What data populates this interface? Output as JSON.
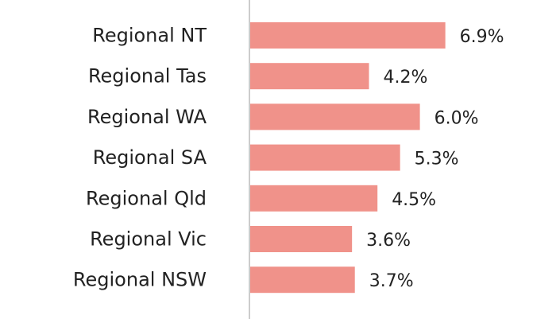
{
  "chart_data": {
    "type": "bar",
    "orientation": "horizontal",
    "categories": [
      "Regional NT",
      "Regional Tas",
      "Regional WA",
      "Regional SA",
      "Regional Qld",
      "Regional Vic",
      "Regional NSW"
    ],
    "values": [
      6.9,
      4.2,
      6.0,
      5.3,
      4.5,
      3.6,
      3.7
    ],
    "value_labels": [
      "6.9%",
      "4.2%",
      "6.0%",
      "5.3%",
      "4.5%",
      "3.6%",
      "3.7%"
    ],
    "title": "",
    "xlabel": "",
    "ylabel": "",
    "xlim": [
      0,
      10
    ],
    "grid": false,
    "colors": {
      "bar": "#f0928a",
      "axis": "#cccccc",
      "text": "#222222"
    }
  }
}
